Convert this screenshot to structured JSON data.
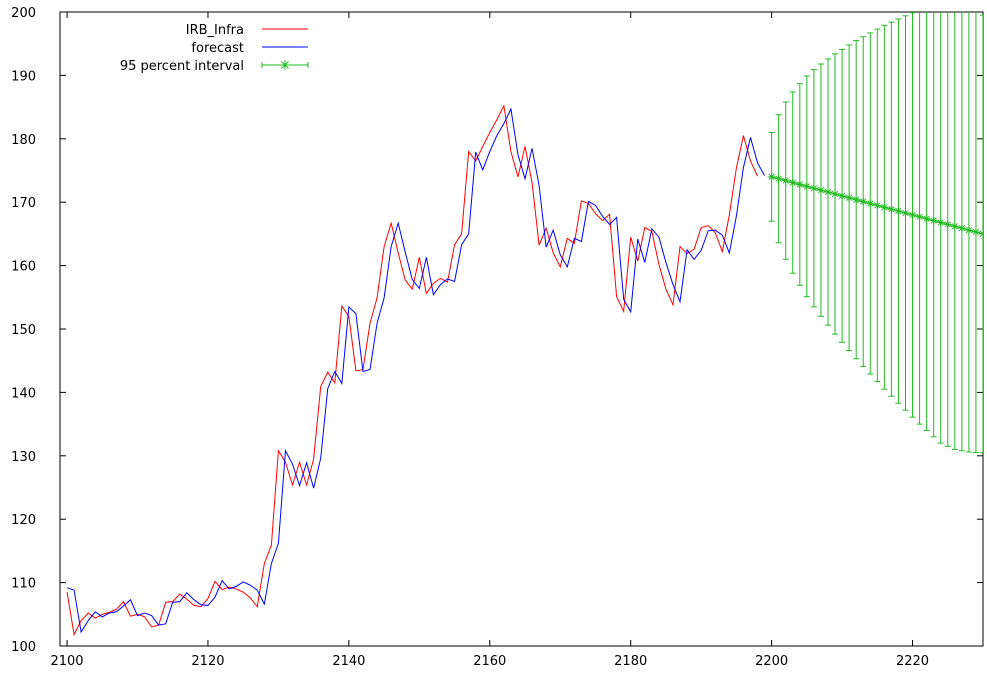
{
  "chart_data": {
    "type": "line",
    "title": "",
    "xlabel": "",
    "ylabel": "",
    "xlim": [
      2099,
      2230
    ],
    "ylim": [
      100,
      200
    ],
    "x_ticks": [
      2100,
      2120,
      2140,
      2160,
      2180,
      2200,
      2220
    ],
    "y_ticks": [
      100,
      110,
      120,
      130,
      140,
      150,
      160,
      170,
      180,
      190,
      200
    ],
    "legend_position": "top-left",
    "grid": false,
    "series": [
      {
        "name": "IRB_Infra",
        "color": "#ff0000",
        "x_start": 2100,
        "values": [
          108.5,
          101.8,
          104.0,
          105.2,
          104.4,
          105.0,
          105.3,
          105.8,
          107.0,
          104.7,
          105.0,
          104.6,
          103.0,
          103.3,
          106.9,
          107.0,
          108.2,
          107.4,
          106.4,
          106.2,
          107.5,
          110.2,
          108.9,
          109.3,
          109.0,
          108.5,
          107.6,
          106.2,
          113.0,
          115.9,
          130.8,
          129.0,
          125.4,
          129.0,
          125.4,
          129.5,
          140.9,
          143.2,
          141.5,
          153.6,
          152.0,
          143.4,
          143.6,
          150.9,
          154.9,
          163.0,
          166.7,
          162.0,
          157.7,
          156.3,
          161.3,
          155.6,
          157.2,
          158.0,
          157.4,
          163.3,
          165.0,
          178.0,
          176.5,
          178.8,
          181.0,
          183.0,
          185.2,
          178.0,
          174.0,
          178.8,
          173.1,
          163.2,
          165.9,
          162.0,
          159.8,
          164.3,
          163.5,
          170.2,
          169.8,
          168.2,
          167.1,
          168.1,
          155.1,
          152.8,
          164.5,
          160.7,
          166.0,
          165.4,
          160.2,
          156.3,
          153.8,
          163.0,
          161.9,
          162.6,
          166.0,
          166.3,
          165.2,
          162.2,
          168.0,
          175.4,
          180.5,
          176.5,
          174.1
        ]
      },
      {
        "name": "forecast",
        "color": "#0000ff",
        "x_start": 2100,
        "values": [
          109.2,
          108.8,
          102.2,
          104.0,
          105.4,
          104.6,
          105.2,
          105.4,
          106.3,
          107.3,
          104.8,
          105.2,
          104.8,
          103.3,
          103.5,
          106.9,
          107.0,
          108.4,
          107.3,
          106.5,
          106.4,
          107.7,
          110.3,
          109.0,
          109.4,
          110.1,
          109.6,
          108.8,
          106.6,
          113.0,
          116.2,
          130.8,
          128.7,
          125.3,
          128.9,
          124.9,
          129.6,
          140.6,
          143.3,
          141.4,
          153.5,
          152.4,
          143.3,
          143.6,
          150.9,
          154.9,
          163.0,
          166.7,
          162.1,
          157.8,
          156.4,
          161.3,
          155.4,
          157.0,
          157.9,
          157.5,
          163.3,
          165.0,
          177.9,
          175.1,
          178.0,
          180.5,
          182.4,
          184.7,
          177.5,
          173.7,
          178.5,
          172.6,
          162.9,
          165.6,
          161.7,
          159.8,
          164.3,
          163.8,
          170.1,
          169.5,
          167.8,
          166.5,
          167.6,
          154.7,
          152.7,
          164.2,
          160.5,
          165.8,
          164.5,
          160.5,
          157.0,
          154.3,
          162.5,
          161.0,
          162.4,
          165.5,
          165.6,
          164.8,
          162.0,
          167.8,
          175.5,
          180.2,
          176.2,
          174.2
        ]
      },
      {
        "name": "95 percent interval",
        "color": "#22bb22",
        "x": [
          2200,
          2201,
          2202,
          2203,
          2204,
          2205,
          2206,
          2207,
          2208,
          2209,
          2210,
          2211,
          2212,
          2213,
          2214,
          2215,
          2216,
          2217,
          2218,
          2219,
          2220,
          2221,
          2222,
          2223,
          2224,
          2225,
          2226,
          2227,
          2228,
          2229,
          2230
        ],
        "values": [
          174.0,
          173.7,
          173.4,
          173.1,
          172.8,
          172.5,
          172.2,
          171.9,
          171.6,
          171.3,
          171.0,
          170.7,
          170.4,
          170.1,
          169.8,
          169.5,
          169.2,
          168.9,
          168.6,
          168.3,
          168.0,
          167.7,
          167.4,
          167.1,
          166.8,
          166.5,
          166.2,
          165.9,
          165.6,
          165.3,
          165.0
        ],
        "lower": [
          167.0,
          163.6,
          161.0,
          158.8,
          156.9,
          155.1,
          153.5,
          152.0,
          150.6,
          149.2,
          147.9,
          146.6,
          145.3,
          144.1,
          142.9,
          141.7,
          140.5,
          139.4,
          138.3,
          137.2,
          136.1,
          135.0,
          134.0,
          133.0,
          132.0,
          131.5,
          131.0,
          130.8,
          130.6,
          130.5,
          130.5
        ],
        "upper": [
          181.0,
          183.8,
          185.8,
          187.4,
          188.7,
          189.9,
          190.9,
          191.8,
          192.6,
          193.4,
          194.1,
          194.8,
          195.5,
          196.1,
          196.7,
          197.3,
          197.9,
          198.4,
          198.9,
          199.4,
          199.9,
          200.4,
          200.8,
          201.2,
          201.6,
          201.5,
          201.4,
          201.0,
          200.6,
          200.1,
          199.5
        ]
      }
    ]
  }
}
